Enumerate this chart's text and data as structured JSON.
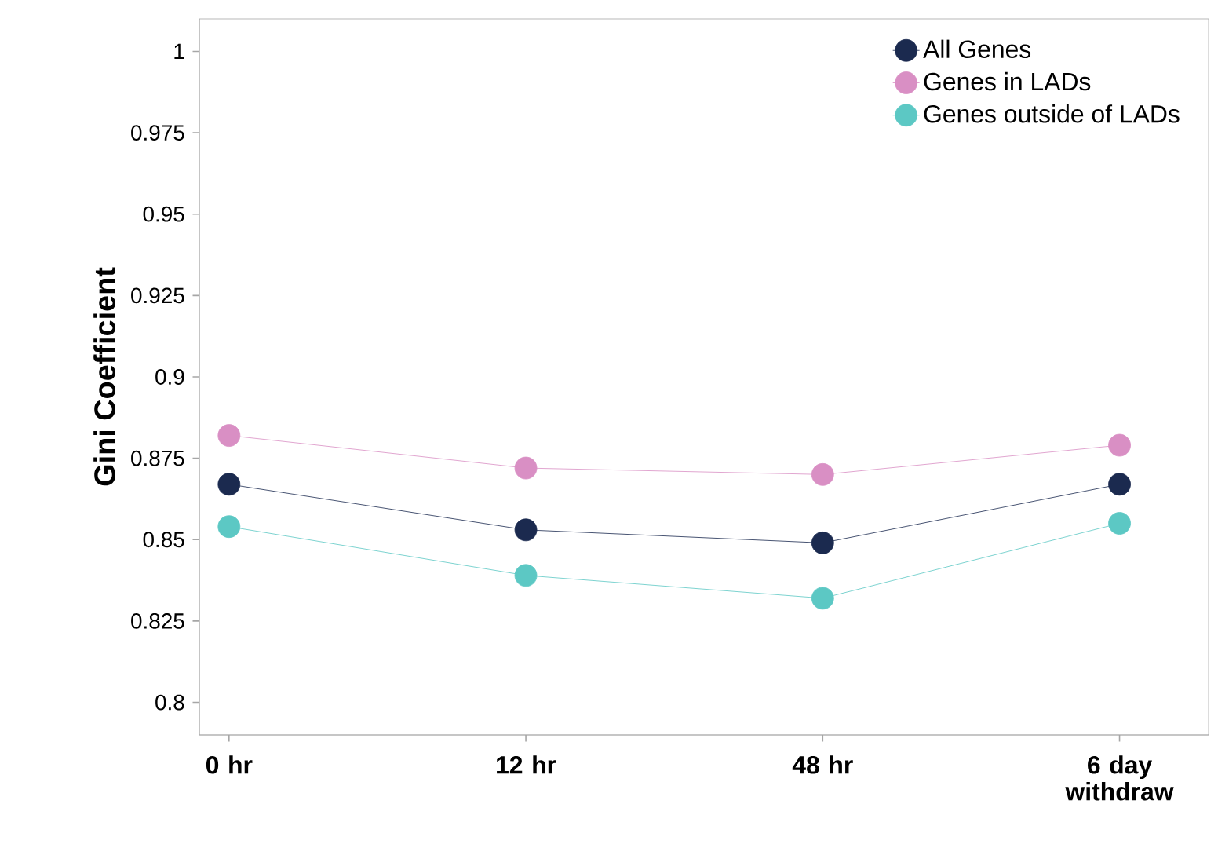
{
  "chart_data": {
    "type": "line",
    "ylabel": "Gini Coefficient",
    "categories": [
      "0 hr",
      "12 hr",
      "48 hr",
      "6 day withdraw"
    ],
    "series": [
      {
        "name": "All Genes",
        "color": "#1b2a4f",
        "values": [
          0.867,
          0.853,
          0.849,
          0.867
        ]
      },
      {
        "name": "Genes in LADs",
        "color": "#d98fc4",
        "values": [
          0.882,
          0.872,
          0.87,
          0.879
        ]
      },
      {
        "name": "Genes outside of LADs",
        "color": "#5cc8c4",
        "values": [
          0.854,
          0.839,
          0.832,
          0.855
        ]
      }
    ],
    "ylim": [
      0.79,
      1.01
    ],
    "yticks": [
      0.8,
      0.825,
      0.85,
      0.875,
      0.9,
      0.925,
      0.95,
      0.975,
      1
    ],
    "grid": false,
    "legend": "top right",
    "marker": "circle",
    "line_style": "solid"
  }
}
